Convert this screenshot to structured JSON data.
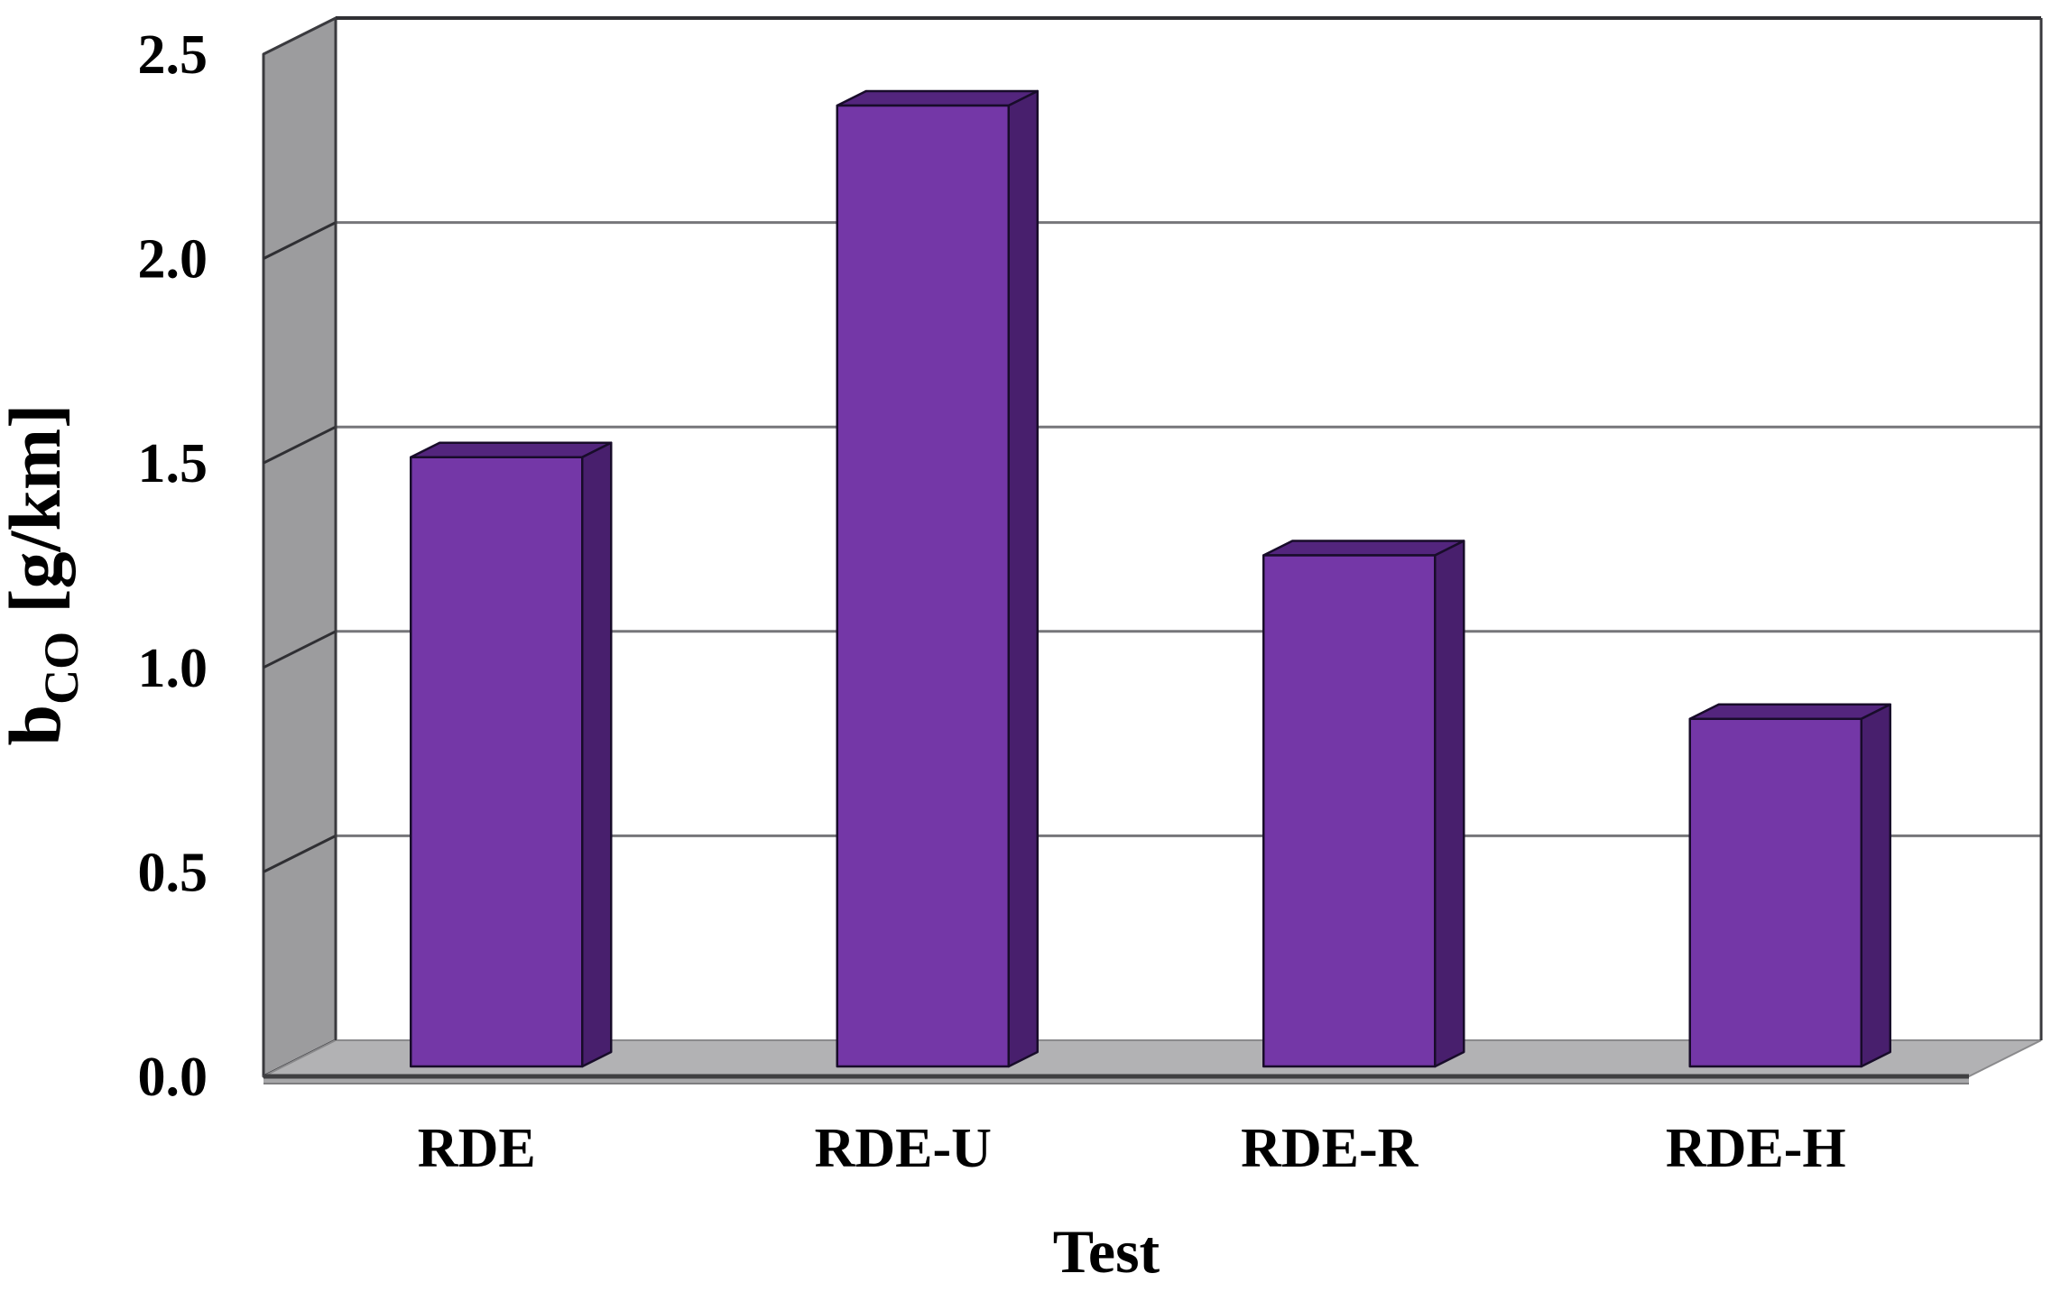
{
  "chart_data": {
    "type": "bar",
    "style": "3d-oblique-column",
    "title": "",
    "categories": [
      "RDE",
      "RDE-U",
      "RDE-R",
      "RDE-H"
    ],
    "values": [
      1.49,
      2.35,
      1.25,
      0.85
    ],
    "xlabel": "Test",
    "ylabel_base": "b",
    "ylabel_sub": "CO",
    "ylabel_units": "[g/km]",
    "ylim": [
      0.0,
      2.5
    ],
    "ytick_step": 0.5,
    "ytick_labels": [
      "0.0",
      "0.5",
      "1.0",
      "1.5",
      "2.0",
      "2.5"
    ],
    "grid": true,
    "legend": false,
    "colors": {
      "bar_front": "#7437A7",
      "bar_top": "#53257D",
      "bar_side": "#481F6D",
      "bar_outline": "#180C2A",
      "left_wall": "#9C9C9E",
      "floor": "#B2B2B4",
      "floor_band": "#A6A6A8",
      "back_wall": "#FFFFFF",
      "gridline_back": "#76767A",
      "gridline_wall": "#2F2F33",
      "edge_dark": "#3A3A3E",
      "edge_light": "#8A8A8C",
      "text": "#000000"
    }
  }
}
